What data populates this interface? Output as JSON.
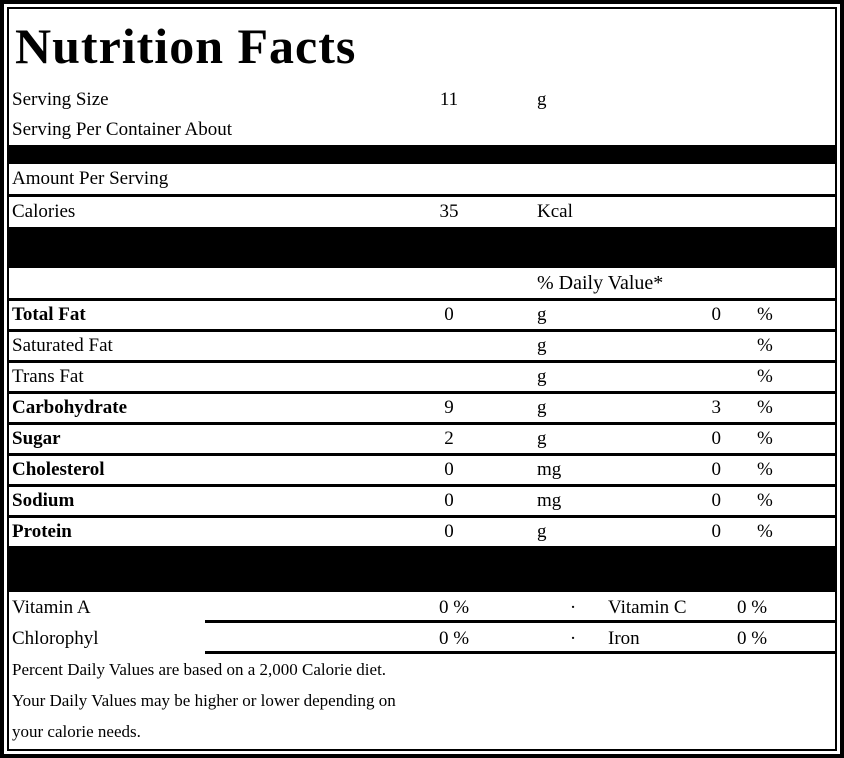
{
  "title": "Nutrition Facts",
  "serving": {
    "size_label": "Serving Size",
    "size_value": "11",
    "size_unit": "g",
    "per_container_label": "Serving Per Container About"
  },
  "amount_per_serving_label": "Amount Per Serving",
  "calories": {
    "label": "Calories",
    "value": "35",
    "unit": "Kcal"
  },
  "daily_value_header": "% Daily Value*",
  "nutrients": [
    {
      "label": "Total Fat",
      "value": "0",
      "unit": "g",
      "dv": "0",
      "pct": "%"
    },
    {
      "label": "Saturated Fat",
      "value": "",
      "unit": "g",
      "dv": "",
      "pct": "%"
    },
    {
      "label": "Trans Fat",
      "value": "",
      "unit": "g",
      "dv": "",
      "pct": "%"
    },
    {
      "label": "Carbohydrate",
      "value": "9",
      "unit": "g",
      "dv": "3",
      "pct": "%"
    },
    {
      "label": "Sugar",
      "value": "2",
      "unit": "g",
      "dv": "0",
      "pct": "%"
    },
    {
      "label": "Cholesterol",
      "value": "0",
      "unit": "mg",
      "dv": "0",
      "pct": "%"
    },
    {
      "label": "Sodium",
      "value": "0",
      "unit": "mg",
      "dv": "0",
      "pct": "%"
    },
    {
      "label": "Protein",
      "value": "0",
      "unit": "g",
      "dv": "0",
      "pct": "%"
    }
  ],
  "vitamins": [
    {
      "left_label": "Vitamin A",
      "left_value": "0 %",
      "bullet": "·",
      "right_label": "Vitamin C",
      "right_value": "0 %"
    },
    {
      "left_label": "Chlorophyl",
      "left_value": "0 %",
      "bullet": "·",
      "right_label": "Iron",
      "right_value": "0 %"
    }
  ],
  "footnote_lines": [
    "Percent Daily Values are based on a 2,000 Calorie diet.",
    "Your Daily Values may be higher or lower depending on",
    "your calorie needs."
  ],
  "colors": {
    "text": "#000000",
    "background": "#ffffff",
    "bar": "#000000"
  }
}
